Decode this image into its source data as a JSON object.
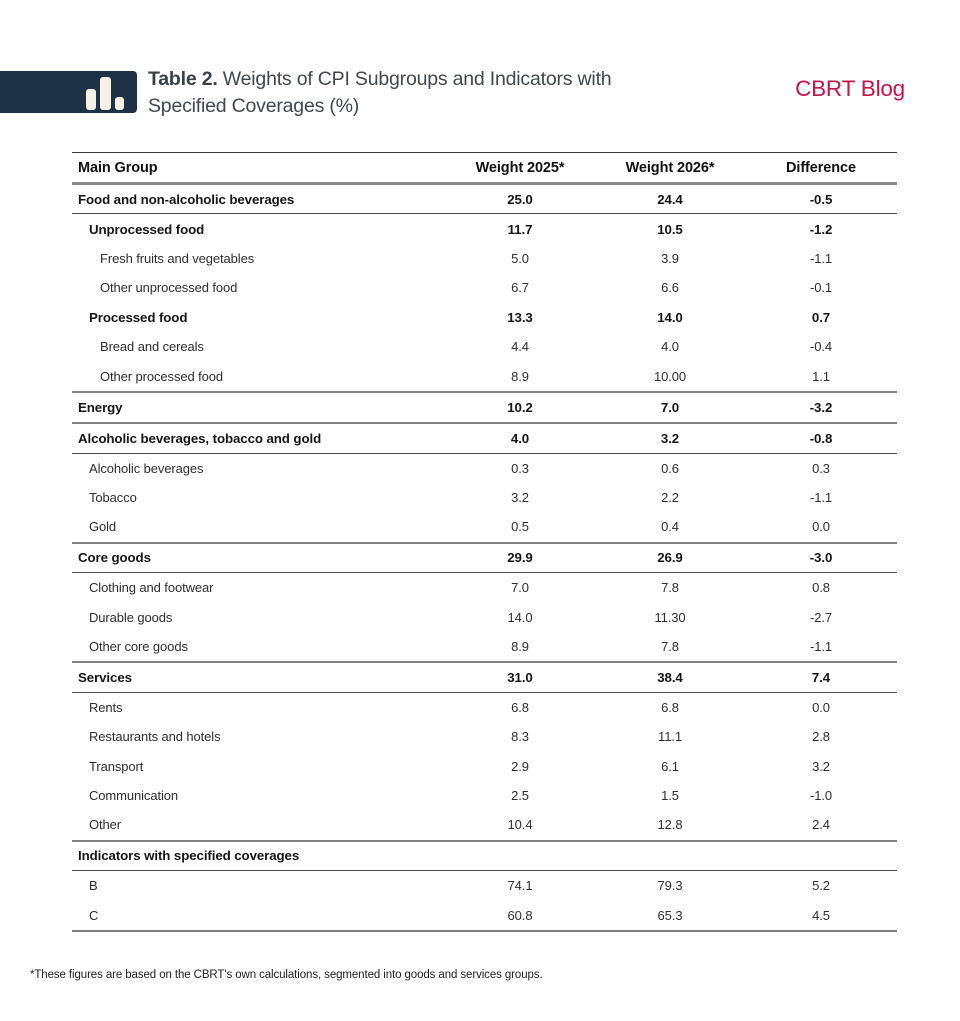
{
  "header": {
    "title_prefix": "Table 2.",
    "title_rest": " Weights of CPI Subgroups and Indicators with Specified Coverages (%)",
    "brand": "CBRT Blog",
    "logo_icon": "bar-chart-icon",
    "colors": {
      "brand_red": "#c61349",
      "logo_navy": "#1e3245",
      "logo_bar_cream": "#f6f1e4"
    }
  },
  "table": {
    "columns": [
      "Main Group",
      "Weight 2025*",
      "Weight 2026*",
      "Difference"
    ],
    "sections": [
      {
        "rows": [
          {
            "label": "Food and non-alcoholic beverages",
            "indent": 0,
            "bold": true,
            "w2025": "25.0",
            "w2026": "24.4",
            "diff": "-0.5"
          },
          {
            "label": "Unprocessed food",
            "indent": 1,
            "bold": true,
            "w2025": "11.7",
            "w2026": "10.5",
            "diff": "-1.2"
          },
          {
            "label": "Fresh fruits and vegetables",
            "indent": 2,
            "bold": false,
            "w2025": "5.0",
            "w2026": "3.9",
            "diff": "-1.1"
          },
          {
            "label": "Other unprocessed food",
            "indent": 2,
            "bold": false,
            "w2025": "6.7",
            "w2026": "6.6",
            "diff": "-0.1"
          },
          {
            "label": "Processed food",
            "indent": 1,
            "bold": true,
            "w2025": "13.3",
            "w2026": "14.0",
            "diff": "0.7"
          },
          {
            "label": "Bread and cereals",
            "indent": 2,
            "bold": false,
            "w2025": "4.4",
            "w2026": "4.0",
            "diff": "-0.4"
          },
          {
            "label": "Other processed food",
            "indent": 2,
            "bold": false,
            "w2025": "8.9",
            "w2026": "10.00",
            "diff": "1.1"
          }
        ]
      },
      {
        "rows": [
          {
            "label": "Energy",
            "indent": 0,
            "bold": true,
            "w2025": "10.2",
            "w2026": "7.0",
            "diff": "-3.2"
          }
        ]
      },
      {
        "rows": [
          {
            "label": "Alcoholic beverages, tobacco and gold",
            "indent": 0,
            "bold": true,
            "w2025": "4.0",
            "w2026": "3.2",
            "diff": "-0.8"
          },
          {
            "label": "Alcoholic beverages",
            "indent": 1,
            "bold": false,
            "w2025": "0.3",
            "w2026": "0.6",
            "diff": "0.3"
          },
          {
            "label": "Tobacco",
            "indent": 1,
            "bold": false,
            "w2025": "3.2",
            "w2026": "2.2",
            "diff": "-1.1"
          },
          {
            "label": "Gold",
            "indent": 1,
            "bold": false,
            "w2025": "0.5",
            "w2026": "0.4",
            "diff": "0.0"
          }
        ]
      },
      {
        "rows": [
          {
            "label": "Core goods",
            "indent": 0,
            "bold": true,
            "w2025": "29.9",
            "w2026": "26.9",
            "diff": "-3.0"
          },
          {
            "label": "Clothing and footwear",
            "indent": 1,
            "bold": false,
            "w2025": "7.0",
            "w2026": "7.8",
            "diff": "0.8"
          },
          {
            "label": "Durable goods",
            "indent": 1,
            "bold": false,
            "w2025": "14.0",
            "w2026": "11.30",
            "diff": "-2.7"
          },
          {
            "label": "Other core goods",
            "indent": 1,
            "bold": false,
            "w2025": "8.9",
            "w2026": "7.8",
            "diff": "-1.1"
          }
        ]
      },
      {
        "rows": [
          {
            "label": "Services",
            "indent": 0,
            "bold": true,
            "w2025": "31.0",
            "w2026": "38.4",
            "diff": "7.4"
          },
          {
            "label": "Rents",
            "indent": 1,
            "bold": false,
            "w2025": "6.8",
            "w2026": "6.8",
            "diff": "0.0"
          },
          {
            "label": "Restaurants and hotels",
            "indent": 1,
            "bold": false,
            "w2025": "8.3",
            "w2026": "11.1",
            "diff": "2.8"
          },
          {
            "label": "Transport",
            "indent": 1,
            "bold": false,
            "w2025": "2.9",
            "w2026": "6.1",
            "diff": "3.2"
          },
          {
            "label": "Communication",
            "indent": 1,
            "bold": false,
            "w2025": "2.5",
            "w2026": "1.5",
            "diff": "-1.0"
          },
          {
            "label": "Other",
            "indent": 1,
            "bold": false,
            "w2025": "10.4",
            "w2026": "12.8",
            "diff": "2.4"
          }
        ]
      },
      {
        "rows": [
          {
            "label": "Indicators with specified coverages",
            "indent": 0,
            "bold": true,
            "w2025": "",
            "w2026": "",
            "diff": ""
          },
          {
            "label": "B",
            "indent": 1,
            "bold": false,
            "w2025": "74.1",
            "w2026": "79.3",
            "diff": "5.2"
          },
          {
            "label": "C",
            "indent": 1,
            "bold": false,
            "w2025": "60.8",
            "w2026": "65.3",
            "diff": "4.5"
          }
        ]
      }
    ]
  },
  "footnote": "*These figures are based on the CBRT's own calculations, segmented into goods and services groups.",
  "chart_data": {
    "type": "table",
    "title": "Table 2. Weights of CPI Subgroups and Indicators with Specified Coverages (%)",
    "columns": [
      "Main Group",
      "Weight 2025*",
      "Weight 2026*",
      "Difference"
    ],
    "rows": [
      [
        "Food and non-alcoholic beverages",
        "25.0",
        "24.4",
        "-0.5"
      ],
      [
        "Unprocessed food",
        "11.7",
        "10.5",
        "-1.2"
      ],
      [
        "Fresh fruits and vegetables",
        "5.0",
        "3.9",
        "-1.1"
      ],
      [
        "Other unprocessed food",
        "6.7",
        "6.6",
        "-0.1"
      ],
      [
        "Processed food",
        "13.3",
        "14.0",
        "0.7"
      ],
      [
        "Bread and cereals",
        "4.4",
        "4.0",
        "-0.4"
      ],
      [
        "Other processed food",
        "8.9",
        "10.00",
        "1.1"
      ],
      [
        "Energy",
        "10.2",
        "7.0",
        "-3.2"
      ],
      [
        "Alcoholic beverages, tobacco and gold",
        "4.0",
        "3.2",
        "-0.8"
      ],
      [
        "Alcoholic beverages",
        "0.3",
        "0.6",
        "0.3"
      ],
      [
        "Tobacco",
        "3.2",
        "2.2",
        "-1.1"
      ],
      [
        "Gold",
        "0.5",
        "0.4",
        "0.0"
      ],
      [
        "Core goods",
        "29.9",
        "26.9",
        "-3.0"
      ],
      [
        "Clothing and footwear",
        "7.0",
        "7.8",
        "0.8"
      ],
      [
        "Durable goods",
        "14.0",
        "11.30",
        "-2.7"
      ],
      [
        "Other core goods",
        "8.9",
        "7.8",
        "-1.1"
      ],
      [
        "Services",
        "31.0",
        "38.4",
        "7.4"
      ],
      [
        "Rents",
        "6.8",
        "6.8",
        "0.0"
      ],
      [
        "Restaurants and hotels",
        "8.3",
        "11.1",
        "2.8"
      ],
      [
        "Transport",
        "2.9",
        "6.1",
        "3.2"
      ],
      [
        "Communication",
        "2.5",
        "1.5",
        "-1.0"
      ],
      [
        "Other",
        "10.4",
        "12.8",
        "2.4"
      ],
      [
        "Indicators with specified coverages",
        "",
        "",
        ""
      ],
      [
        "B",
        "74.1",
        "79.3",
        "5.2"
      ],
      [
        "C",
        "60.8",
        "65.3",
        "4.5"
      ]
    ]
  }
}
